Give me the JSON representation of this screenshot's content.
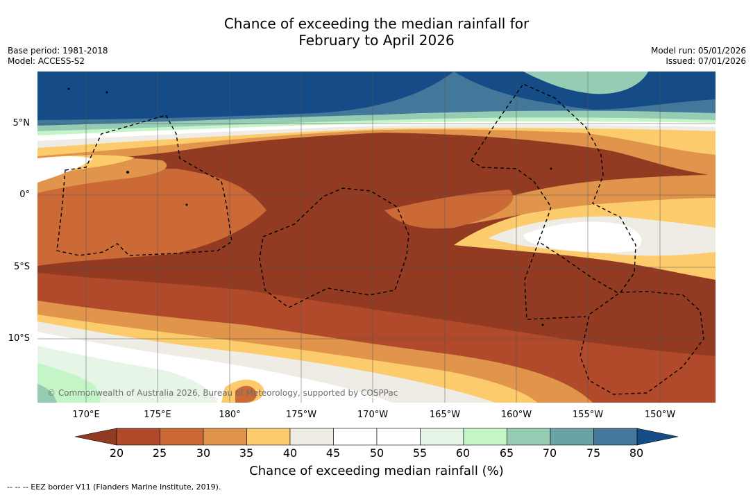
{
  "title": {
    "line1": "Chance of exceeding the median rainfall for",
    "line2": "February to April 2026"
  },
  "meta_left": {
    "base_period": "Base period: 1981-2018",
    "model": "Model: ACCESS-S2"
  },
  "meta_right": {
    "model_run": "Model run: 05/01/2026",
    "issued": "Issued: 07/01/2026"
  },
  "map": {
    "lat_labels": [
      "5°N",
      "0°",
      "5°S",
      "10°S"
    ],
    "lon_labels": [
      "170°E",
      "175°E",
      "180°",
      "175°W",
      "170°W",
      "165°W",
      "160°W",
      "155°W",
      "150°W"
    ],
    "copyright": "© Commonwealth of Australia 2026, Bureau of Meteorology, supported by COSPPac"
  },
  "colorbar": {
    "ticks": [
      "20",
      "25",
      "30",
      "35",
      "40",
      "45",
      "50",
      "55",
      "60",
      "65",
      "70",
      "75",
      "80"
    ],
    "colors": [
      "#923B22",
      "#B04A2B",
      "#CB6937",
      "#E0944C",
      "#FCCB6C",
      "#EFECE6",
      "#FFFFFF",
      "#FFFFFF",
      "#E6F5E6",
      "#C4F5C6",
      "#97CCB4",
      "#6AA3A6",
      "#43789A",
      "#154B86"
    ],
    "title": "Chance of exceeding median rainfall (%)"
  },
  "footnote": "--  --  -- EEZ border V11 (Flanders Marine Institute, 2019)."
}
